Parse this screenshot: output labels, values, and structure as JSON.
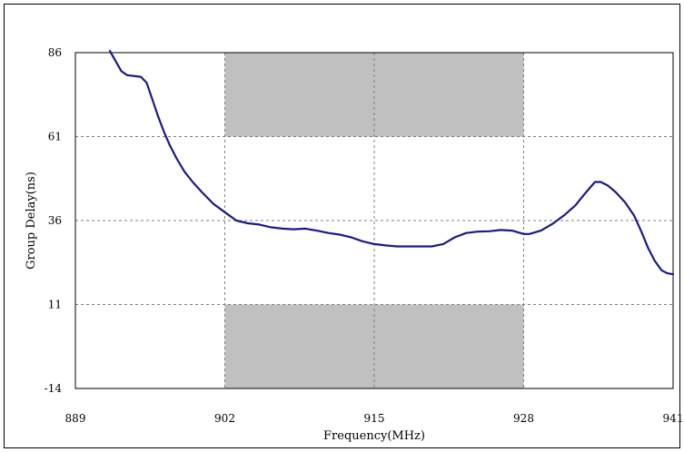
{
  "chart_data": {
    "type": "line",
    "title": "",
    "xlabel": "Frequency(MHz)",
    "ylabel": "Group Delay(ns)",
    "xlim": [
      889,
      941
    ],
    "ylim": [
      -14,
      86
    ],
    "x_ticks": [
      889,
      902,
      915,
      928,
      941
    ],
    "y_ticks": [
      -14,
      11,
      36,
      61,
      86
    ],
    "x_tick_labels": [
      "889",
      "902",
      "915",
      "928",
      "941"
    ],
    "y_tick_labels": [
      "-14",
      "11",
      "36",
      "61",
      "86"
    ],
    "grid": true,
    "legend": "none",
    "masks": [
      {
        "x": [
          902,
          928
        ],
        "y": [
          61,
          86
        ],
        "color": "#c0c0c0"
      },
      {
        "x": [
          902,
          928
        ],
        "y": [
          -14,
          11
        ],
        "color": "#c0c0c0"
      }
    ],
    "series": [
      {
        "color": "#1a1a8c",
        "x": [
          892.0,
          892.5,
          893.0,
          893.5,
          894.2,
          894.7,
          895.2,
          895.7,
          896.2,
          896.7,
          897.2,
          897.8,
          898.5,
          899.2,
          900.0,
          901.0,
          902.0,
          903.0,
          904.0,
          905.0,
          906.0,
          907.0,
          908.0,
          909.0,
          910.0,
          911.0,
          912.0,
          913.0,
          914.0,
          915.0,
          916.0,
          917.0,
          918.0,
          919.0,
          920.0,
          921.0,
          921.5,
          922.0,
          923.0,
          924.0,
          925.0,
          926.0,
          927.0,
          928.0,
          928.5,
          929.5,
          930.5,
          931.5,
          932.5,
          933.2,
          933.7,
          934.2,
          934.7,
          935.3,
          936.0,
          936.8,
          937.6,
          938.2,
          938.8,
          939.4,
          940.0,
          940.5,
          941.0
        ],
        "values": [
          86.5,
          83.5,
          80.5,
          79.3,
          79.0,
          78.8,
          77.0,
          72.0,
          67.0,
          62.5,
          58.5,
          54.5,
          50.5,
          47.5,
          44.5,
          41.0,
          38.5,
          36.0,
          35.2,
          34.8,
          34.0,
          33.6,
          33.4,
          33.6,
          33.0,
          32.3,
          31.8,
          31.0,
          29.8,
          29.0,
          28.6,
          28.3,
          28.3,
          28.3,
          28.3,
          29.0,
          30.0,
          31.0,
          32.3,
          32.7,
          32.8,
          33.2,
          33.0,
          32.0,
          32.0,
          33.0,
          35.0,
          37.5,
          40.5,
          43.5,
          45.5,
          47.5,
          47.5,
          46.5,
          44.5,
          41.5,
          37.5,
          33.0,
          28.0,
          24.0,
          21.2,
          20.3,
          20.0
        ]
      }
    ]
  }
}
